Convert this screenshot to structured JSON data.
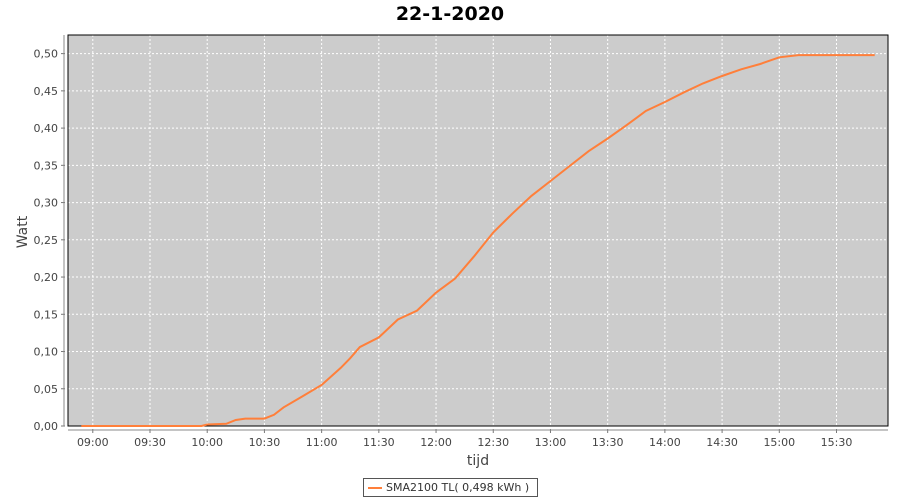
{
  "chart_data": {
    "type": "line",
    "title": "22-1-2020",
    "xlabel": "tijd",
    "ylabel": "Watt",
    "xlim": [
      "08:47",
      "15:57"
    ],
    "ylim": [
      0,
      0.525
    ],
    "x_ticks": [
      "09:00",
      "09:30",
      "10:00",
      "10:30",
      "11:00",
      "11:30",
      "12:00",
      "12:30",
      "13:00",
      "13:30",
      "14:00",
      "14:30",
      "15:00",
      "15:30"
    ],
    "y_ticks": [
      "0,00",
      "0,05",
      "0,10",
      "0,15",
      "0,20",
      "0,25",
      "0,30",
      "0,35",
      "0,40",
      "0,45",
      "0,50"
    ],
    "grid": true,
    "legend_placement": "bottom",
    "colors": {
      "series": "#ff7f3a",
      "plot_background": "#cccccc",
      "grid": "#ffffff"
    },
    "series": [
      {
        "name": "SMA2100 TL( 0,498 kWh )",
        "x": [
          "08:54",
          "09:57",
          "10:00",
          "10:10",
          "10:15",
          "10:20",
          "10:30",
          "10:35",
          "10:40",
          "10:50",
          "11:00",
          "11:10",
          "11:15",
          "11:20",
          "11:30",
          "11:40",
          "11:50",
          "12:00",
          "12:10",
          "12:20",
          "12:30",
          "12:40",
          "12:50",
          "13:00",
          "13:10",
          "13:20",
          "13:30",
          "13:40",
          "13:50",
          "14:00",
          "14:10",
          "14:20",
          "14:30",
          "14:40",
          "14:50",
          "15:00",
          "15:10",
          "15:50"
        ],
        "y": [
          0,
          0,
          0.002,
          0.003,
          0.008,
          0.01,
          0.01,
          0.015,
          0.025,
          0.04,
          0.055,
          0.078,
          0.091,
          0.106,
          0.119,
          0.143,
          0.155,
          0.179,
          0.198,
          0.228,
          0.26,
          0.285,
          0.309,
          0.329,
          0.349,
          0.369,
          0.386,
          0.404,
          0.423,
          0.435,
          0.448,
          0.46,
          0.47,
          0.479,
          0.486,
          0.495,
          0.498,
          0.498
        ]
      }
    ]
  }
}
